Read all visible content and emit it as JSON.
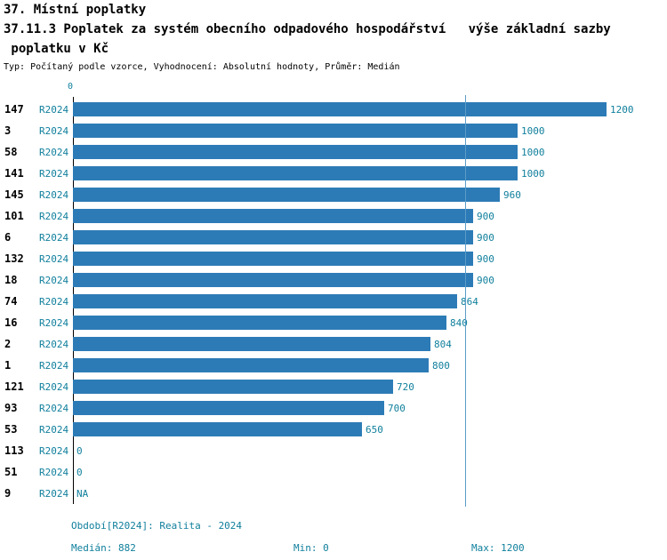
{
  "header": {
    "line1": "37. Místní poplatky",
    "line2": "37.11.3 Poplatek za systém obecního odpadového hospodářství   výše základní sazby",
    "line3": " poplatku v Kč",
    "subtitle": "Typ: Počítaný podle vzorce, Vyhodnocení: Absolutní hodnoty, Průměr: Medián"
  },
  "chart_data": {
    "type": "bar",
    "orientation": "horizontal",
    "title": "37.11.3 Poplatek za systém obecního odpadového hospodářství - výše základní sazby poplatku v Kč",
    "categories": [
      "147",
      "3",
      "58",
      "141",
      "145",
      "101",
      "6",
      "132",
      "18",
      "74",
      "16",
      "2",
      "1",
      "121",
      "93",
      "53",
      "113",
      "51",
      "9"
    ],
    "period_label": "R2024",
    "values": [
      1200,
      1000,
      1000,
      1000,
      960,
      900,
      900,
      900,
      900,
      864,
      840,
      804,
      800,
      720,
      700,
      650,
      0,
      0,
      null
    ],
    "value_labels": [
      "1200",
      "1000",
      "1000",
      "1000",
      "960",
      "900",
      "900",
      "900",
      "900",
      "864",
      "840",
      "804",
      "800",
      "720",
      "700",
      "650",
      "0",
      "0",
      "NA"
    ],
    "xlim": [
      0,
      1200
    ],
    "median": 882,
    "zero_tick": "0",
    "grid": false,
    "legend_position": "none"
  },
  "footer": {
    "period": "Období[R2024]: Realita - 2024",
    "median": "Medián: 882",
    "min": "Min: 0",
    "max": "Max: 1200"
  },
  "colors": {
    "bar": "#2c7bb6",
    "accent": "#0f7f9c",
    "median": "#5b9dc9"
  }
}
